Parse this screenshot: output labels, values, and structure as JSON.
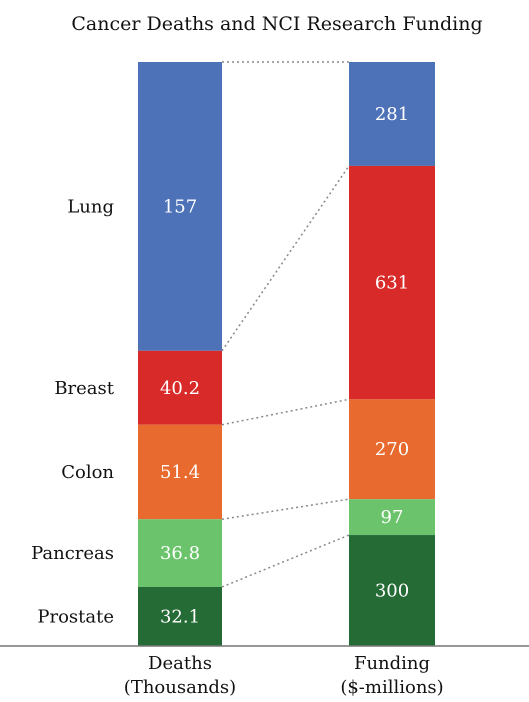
{
  "chart_data": {
    "type": "bar",
    "title": "Cancer Deaths and NCI Research Funding",
    "categories": [
      "Lung",
      "Breast",
      "Colon",
      "Pancreas",
      "Prostate"
    ],
    "colors": [
      "#4d72b8",
      "#d92a2a",
      "#e86a2e",
      "#6bc46b",
      "#246b36"
    ],
    "series": [
      {
        "labels": [
          "Deaths",
          "(Thousands)"
        ],
        "values": [
          157,
          40.2,
          51.4,
          36.8,
          32.1
        ],
        "value_labels": [
          "157",
          "40.2",
          "51.4",
          "36.8",
          "32.1"
        ]
      },
      {
        "labels": [
          "Funding",
          "($-millions)"
        ],
        "values": [
          281,
          631,
          270,
          97,
          300
        ],
        "value_labels": [
          "281",
          "631",
          "270",
          "97",
          "300"
        ]
      }
    ],
    "stacked": true,
    "normalized": true,
    "connectors": "dotted",
    "legend": "none"
  }
}
